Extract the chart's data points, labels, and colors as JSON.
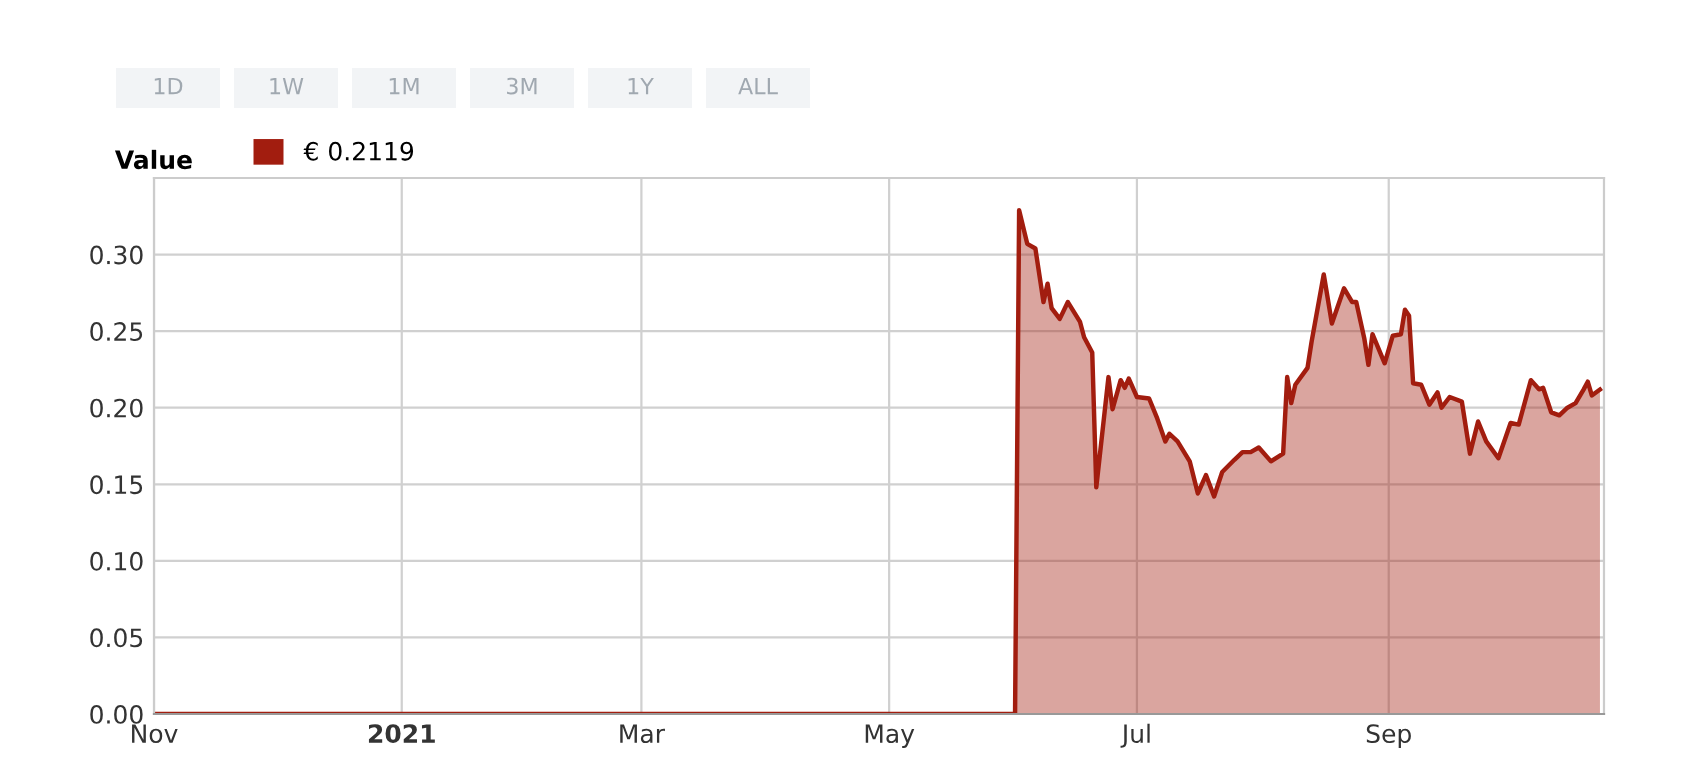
{
  "chart_data": {
    "type": "area",
    "legend_title": "Value",
    "legend": "top left",
    "grid": true,
    "annotations": [
      "1D",
      "1W",
      "1M",
      "3M",
      "1Y",
      "ALL"
    ],
    "xlim": [
      "2020-11-01",
      "2021-10-24"
    ],
    "ylim": [
      0,
      0.35
    ],
    "xticks": [
      {
        "value": "2020-11-01",
        "label": "Nov"
      },
      {
        "value": "2021-01-01",
        "label": "2021"
      },
      {
        "value": "2021-03-01",
        "label": "Mar"
      },
      {
        "value": "2021-05-01",
        "label": "May"
      },
      {
        "value": "2021-07-01",
        "label": "Jul"
      },
      {
        "value": "2021-09-01",
        "label": "Sep"
      }
    ],
    "yticks": [
      {
        "value": 0,
        "label": "0.00"
      },
      {
        "value": 0.05,
        "label": "0.05"
      },
      {
        "value": 0.1,
        "label": "0.10"
      },
      {
        "value": 0.15,
        "label": "0.15"
      },
      {
        "value": 0.2,
        "label": "0.20"
      },
      {
        "value": 0.25,
        "label": "0.25"
      },
      {
        "value": 0.3,
        "label": "0.30"
      }
    ],
    "series": [
      {
        "name": "€ 0.2119",
        "color": "#a21d0f",
        "x": [
          "2020-11-01",
          "2021-06-01",
          "2021-06-02",
          "2021-06-04",
          "2021-06-06",
          "2021-06-08",
          "2021-06-09",
          "2021-06-10",
          "2021-06-12",
          "2021-06-14",
          "2021-06-17",
          "2021-06-18",
          "2021-06-20",
          "2021-06-21",
          "2021-06-24",
          "2021-06-25",
          "2021-06-27",
          "2021-06-28",
          "2021-06-29",
          "2021-07-01",
          "2021-07-04",
          "2021-07-06",
          "2021-07-08",
          "2021-07-09",
          "2021-07-11",
          "2021-07-14",
          "2021-07-16",
          "2021-07-18",
          "2021-07-20",
          "2021-07-22",
          "2021-07-25",
          "2021-07-27",
          "2021-07-29",
          "2021-07-31",
          "2021-08-03",
          "2021-08-06",
          "2021-08-07",
          "2021-08-08",
          "2021-08-09",
          "2021-08-12",
          "2021-08-13",
          "2021-08-16",
          "2021-08-18",
          "2021-08-21",
          "2021-08-23",
          "2021-08-24",
          "2021-08-26",
          "2021-08-27",
          "2021-08-28",
          "2021-08-31",
          "2021-09-02",
          "2021-09-04",
          "2021-09-05",
          "2021-09-06",
          "2021-09-07",
          "2021-09-09",
          "2021-09-11",
          "2021-09-13",
          "2021-09-14",
          "2021-09-16",
          "2021-09-19",
          "2021-09-21",
          "2021-09-23",
          "2021-09-25",
          "2021-09-28",
          "2021-10-01",
          "2021-10-03",
          "2021-10-06",
          "2021-10-08",
          "2021-10-09",
          "2021-10-11",
          "2021-10-13",
          "2021-10-15",
          "2021-10-17",
          "2021-10-19",
          "2021-10-20",
          "2021-10-21",
          "2021-10-23"
        ],
        "values": [
          0,
          0,
          0.329,
          0.307,
          0.304,
          0.269,
          0.281,
          0.265,
          0.258,
          0.269,
          0.256,
          0.246,
          0.236,
          0.148,
          0.22,
          0.199,
          0.218,
          0.213,
          0.219,
          0.207,
          0.206,
          0.193,
          0.178,
          0.183,
          0.178,
          0.165,
          0.144,
          0.156,
          0.142,
          0.158,
          0.166,
          0.171,
          0.171,
          0.174,
          0.165,
          0.17,
          0.22,
          0.203,
          0.215,
          0.226,
          0.243,
          0.287,
          0.255,
          0.278,
          0.269,
          0.269,
          0.245,
          0.228,
          0.248,
          0.229,
          0.247,
          0.248,
          0.264,
          0.26,
          0.216,
          0.215,
          0.202,
          0.21,
          0.2,
          0.207,
          0.204,
          0.17,
          0.191,
          0.178,
          0.167,
          0.19,
          0.189,
          0.218,
          0.212,
          0.213,
          0.197,
          0.195,
          0.2,
          0.203,
          0.212,
          0.217,
          0.208,
          0.2119
        ]
      }
    ]
  }
}
